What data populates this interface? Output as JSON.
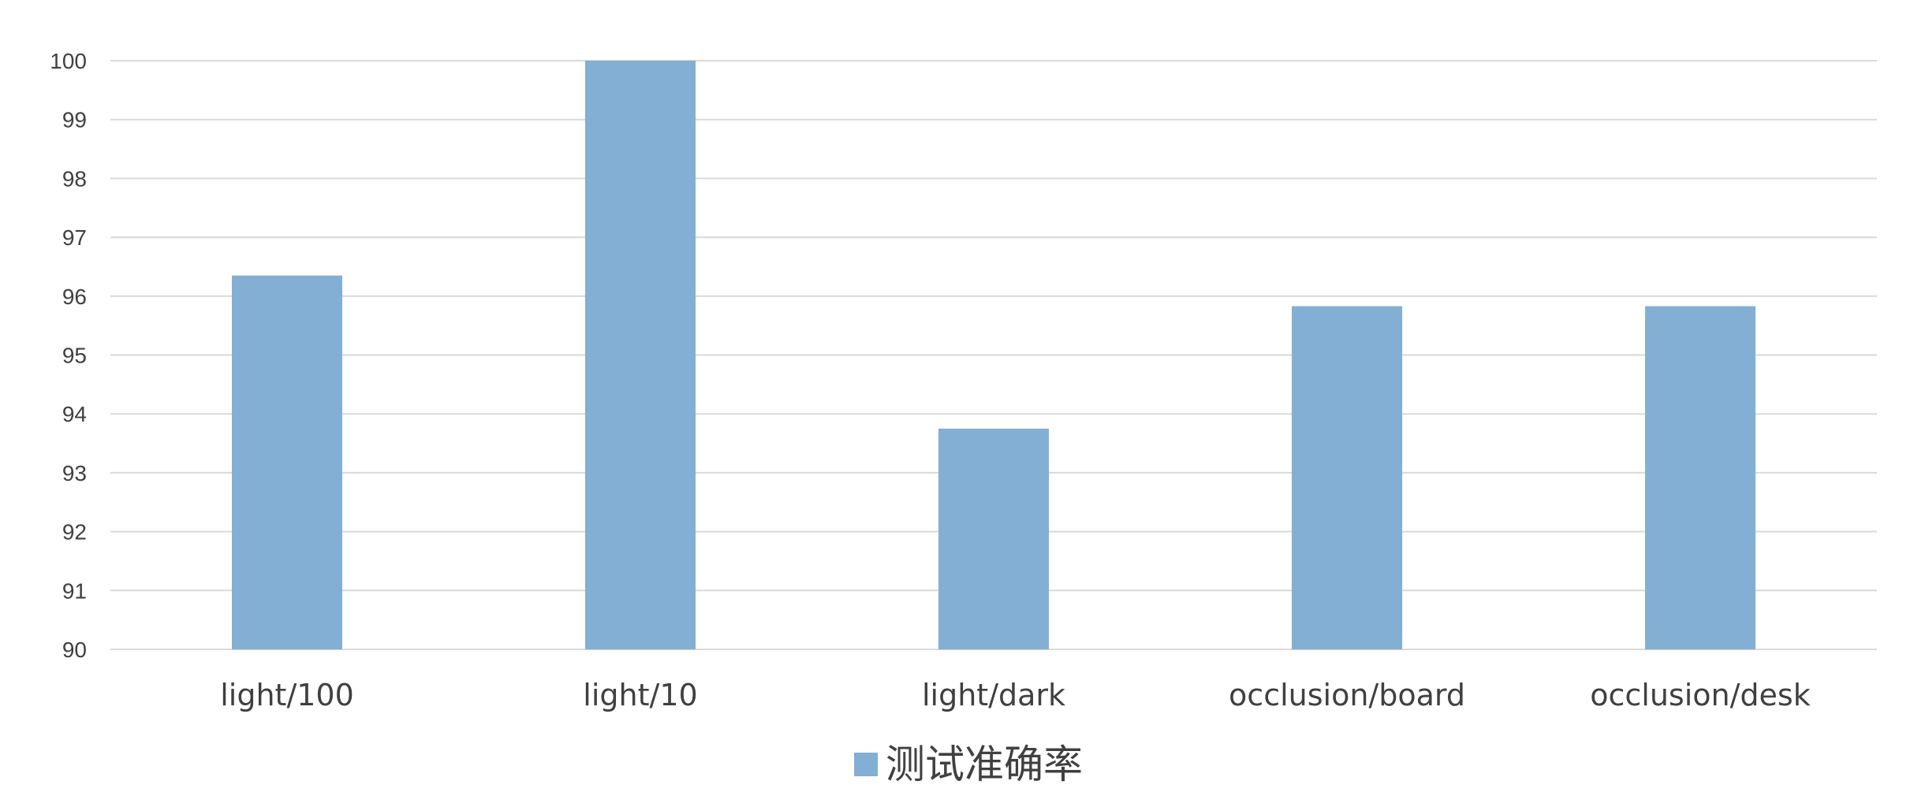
{
  "chart_data": {
    "type": "bar",
    "title": "",
    "xlabel": "",
    "ylabel": "",
    "categories": [
      "light/100",
      "light/10",
      "light/dark",
      "occlusion/board",
      "occlusion/desk"
    ],
    "series": [
      {
        "name": "测试准确率",
        "values": [
          96.35,
          100,
          93.75,
          95.83,
          95.83
        ],
        "color": "#83AFD4"
      }
    ],
    "ylim": [
      90,
      100
    ],
    "yticks": [
      90,
      91,
      92,
      93,
      94,
      95,
      96,
      97,
      98,
      99,
      100
    ],
    "grid": true,
    "legend_position": "bottom"
  },
  "colors": {
    "gridline": "#d9d9d9",
    "text": "#404040",
    "bar": "#83AFD4"
  }
}
